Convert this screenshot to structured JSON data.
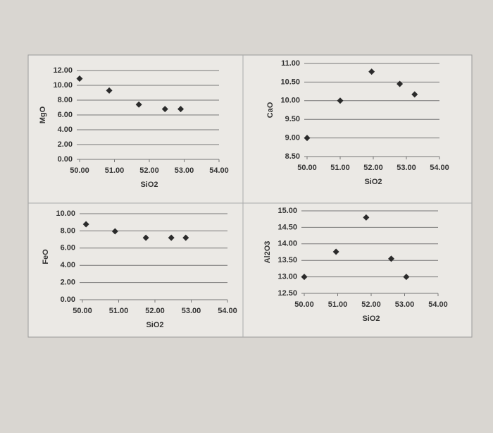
{
  "chart_data": [
    {
      "type": "scatter",
      "x_label": "SiO2",
      "y_label": "MgO",
      "color": "#2b2b2b",
      "grid": true,
      "x": [
        50.0,
        50.85,
        51.7,
        52.45,
        52.9
      ],
      "values": [
        10.9,
        9.3,
        7.4,
        6.8,
        6.8
      ],
      "xlim": [
        50,
        54
      ],
      "ylim": [
        0,
        12
      ],
      "xticks": [
        {
          "value": 50,
          "label": "50.00"
        },
        {
          "value": 51,
          "label": "51.00"
        },
        {
          "value": 52,
          "label": "52.00"
        },
        {
          "value": 53,
          "label": "53.00"
        },
        {
          "value": 54,
          "label": "54.00"
        }
      ],
      "yticks": [
        {
          "value": 0,
          "label": "0.00"
        },
        {
          "value": 2,
          "label": "2.00"
        },
        {
          "value": 4,
          "label": "4.00"
        },
        {
          "value": 6,
          "label": "6.00"
        },
        {
          "value": 8,
          "label": "8.00"
        },
        {
          "value": 10,
          "label": "10.00"
        },
        {
          "value": 12,
          "label": "12.00"
        }
      ]
    },
    {
      "type": "scatter",
      "x_label": "SiO2",
      "y_label": "CaO",
      "color": "#2b2b2b",
      "grid": true,
      "x": [
        50.0,
        51.0,
        51.95,
        52.8,
        53.25
      ],
      "values": [
        9.0,
        10.0,
        10.78,
        10.45,
        10.17
      ],
      "xlim": [
        50,
        54
      ],
      "ylim": [
        8.5,
        11
      ],
      "xticks": [
        {
          "value": 50,
          "label": "50.00"
        },
        {
          "value": 51,
          "label": "51.00"
        },
        {
          "value": 52,
          "label": "52.00"
        },
        {
          "value": 53,
          "label": "53.00"
        },
        {
          "value": 54,
          "label": "54.00"
        }
      ],
      "yticks": [
        {
          "value": 8.5,
          "label": "8.50"
        },
        {
          "value": 9,
          "label": "9.00"
        },
        {
          "value": 9.5,
          "label": "9.50"
        },
        {
          "value": 10,
          "label": "10.00"
        },
        {
          "value": 10.5,
          "label": "10.50"
        },
        {
          "value": 11,
          "label": "11.00"
        }
      ]
    },
    {
      "type": "scatter",
      "x_label": "SiO2",
      "y_label": "FeO",
      "color": "#2b2b2b",
      "grid": true,
      "x": [
        50.1,
        50.9,
        51.75,
        52.45,
        52.85
      ],
      "values": [
        8.77,
        7.95,
        7.2,
        7.2,
        7.2
      ],
      "xlim": [
        50,
        54
      ],
      "ylim": [
        0,
        10
      ],
      "xticks": [
        {
          "value": 50,
          "label": "50.00"
        },
        {
          "value": 51,
          "label": "51.00"
        },
        {
          "value": 52,
          "label": "52.00"
        },
        {
          "value": 53,
          "label": "53.00"
        },
        {
          "value": 54,
          "label": "54.00"
        }
      ],
      "yticks": [
        {
          "value": 0,
          "label": "0.00"
        },
        {
          "value": 2,
          "label": "2.00"
        },
        {
          "value": 4,
          "label": "4.00"
        },
        {
          "value": 6,
          "label": "6.00"
        },
        {
          "value": 8,
          "label": "8.00"
        },
        {
          "value": 10,
          "label": "10.00"
        }
      ]
    },
    {
      "type": "scatter",
      "x_label": "SiO2",
      "y_label": "Al2O3",
      "color": "#2b2b2b",
      "grid": true,
      "x": [
        50.0,
        50.95,
        51.85,
        52.6,
        53.05
      ],
      "values": [
        13.0,
        13.76,
        14.8,
        13.55,
        13.0
      ],
      "xlim": [
        50,
        54
      ],
      "ylim": [
        12.5,
        15
      ],
      "xticks": [
        {
          "value": 50,
          "label": "50.00"
        },
        {
          "value": 51,
          "label": "51.00"
        },
        {
          "value": 52,
          "label": "52.00"
        },
        {
          "value": 53,
          "label": "53.00"
        },
        {
          "value": 54,
          "label": "54.00"
        }
      ],
      "yticks": [
        {
          "value": 12.5,
          "label": "12.50"
        },
        {
          "value": 13,
          "label": "13.00"
        },
        {
          "value": 13.5,
          "label": "13.50"
        },
        {
          "value": 14,
          "label": "14.00"
        },
        {
          "value": 14.5,
          "label": "14.50"
        },
        {
          "value": 15,
          "label": "15.00"
        }
      ]
    }
  ]
}
